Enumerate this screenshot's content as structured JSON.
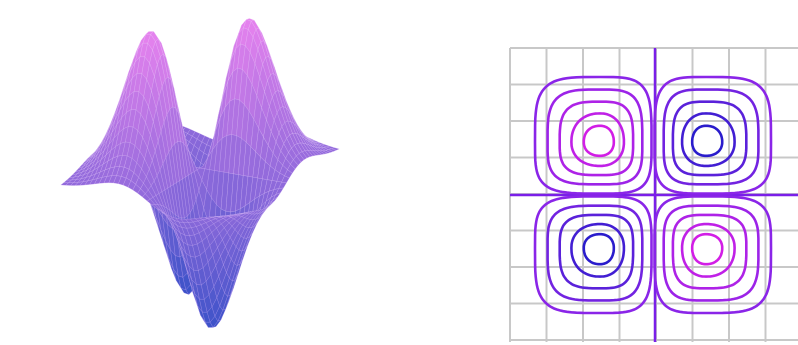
{
  "chart_data": [
    {
      "type": "surface"
    },
    {
      "type": "contour",
      "grid": true
    }
  ]
}
